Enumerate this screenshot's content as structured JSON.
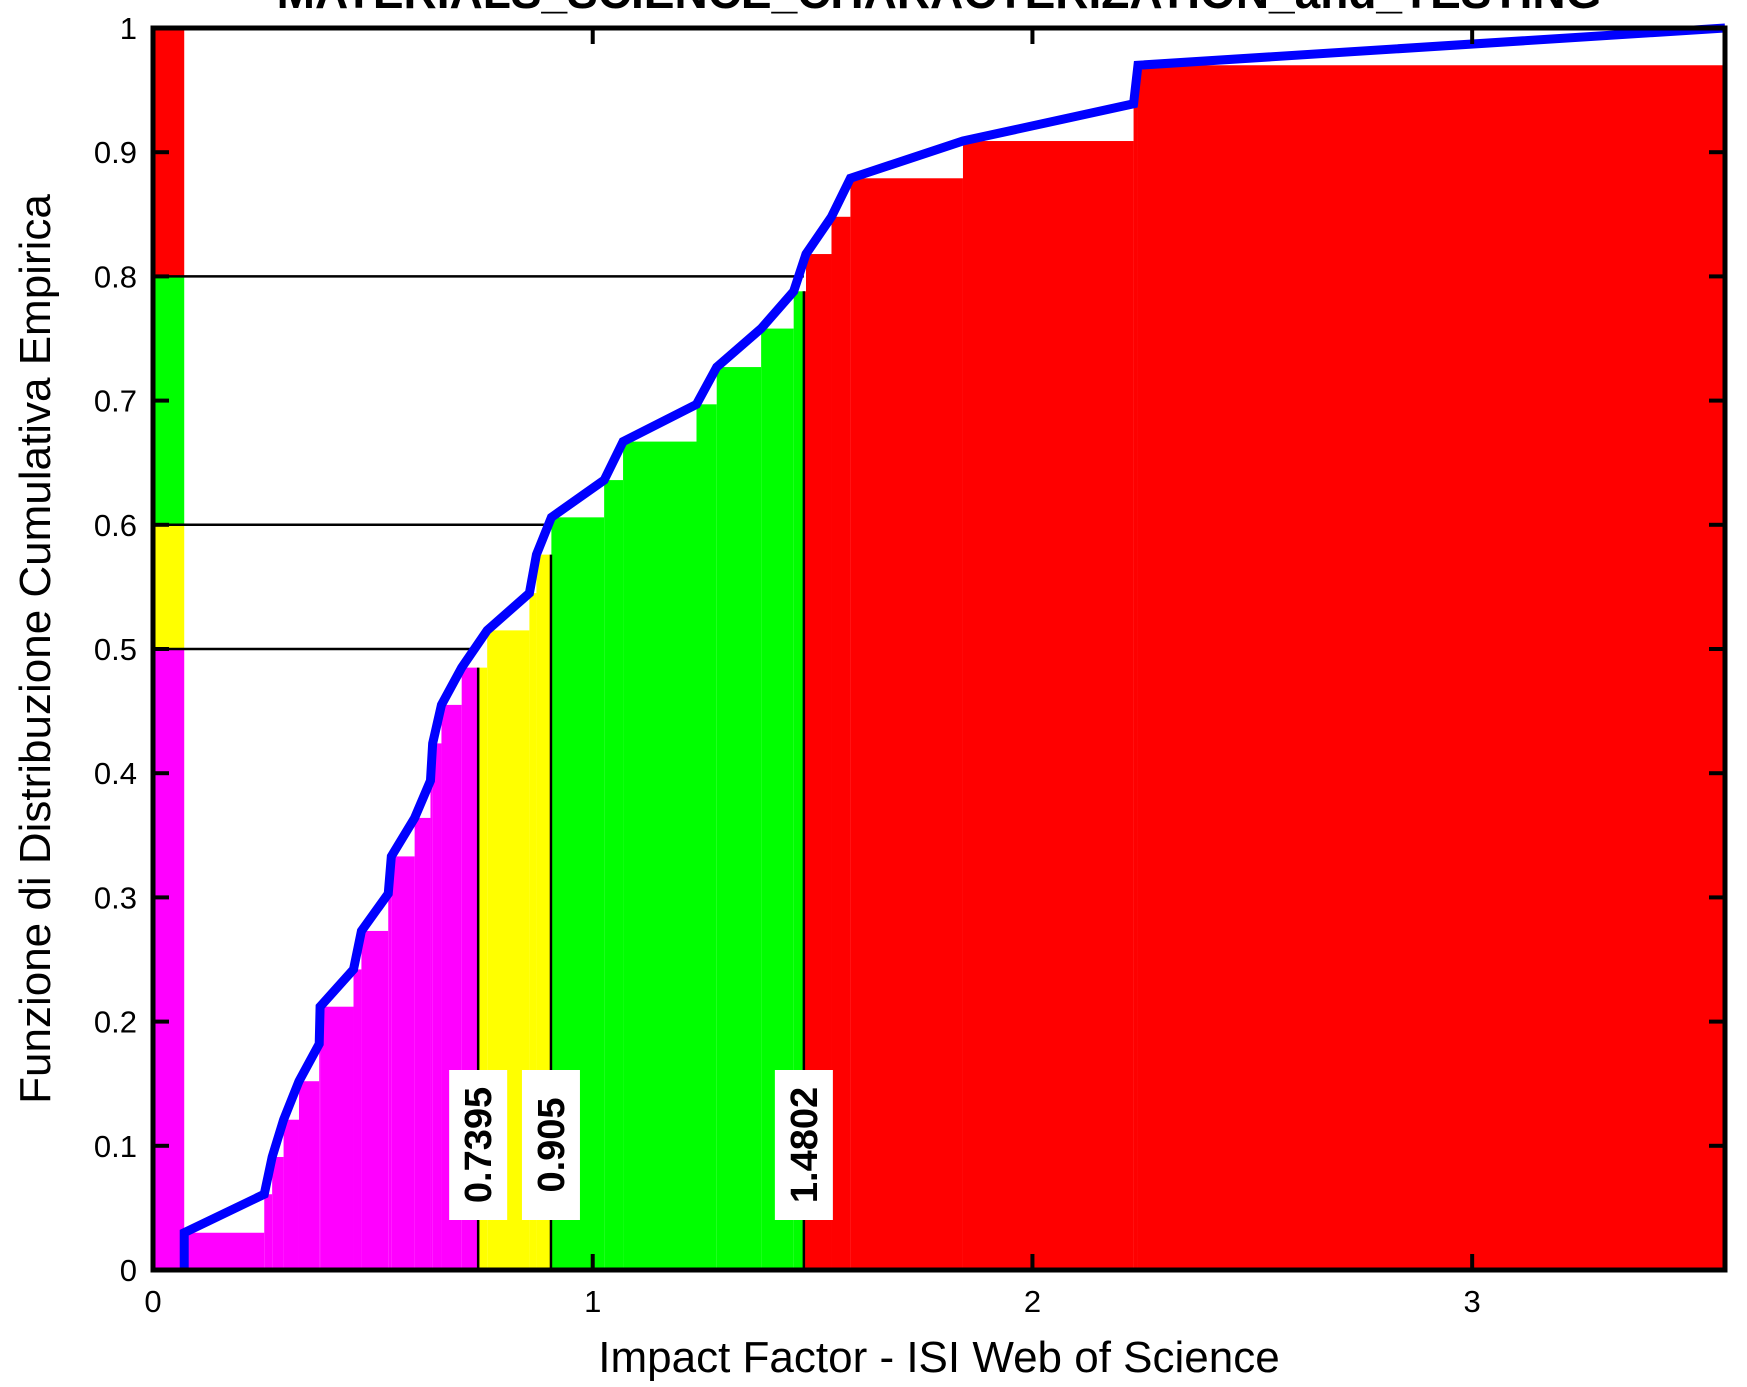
{
  "chart_data": {
    "type": "line",
    "title": "MATERIALS_SCIENCE_CHARACTERIZATION_and_TESTING",
    "xlabel": "Impact Factor - ISI Web of Science",
    "ylabel": "Funzione di Distribuzione Cumulativa Empirica",
    "x": [
      0.071,
      0.071,
      0.253,
      0.271,
      0.297,
      0.332,
      0.378,
      0.38,
      0.456,
      0.474,
      0.535,
      0.542,
      0.595,
      0.631,
      0.636,
      0.656,
      0.702,
      0.76,
      0.856,
      0.872,
      0.906,
      1.026,
      1.069,
      1.236,
      1.282,
      1.383,
      1.457,
      1.485,
      1.543,
      1.586,
      1.842,
      2.23,
      2.24,
      3.575
    ],
    "values": [
      0,
      0.03,
      0.061,
      0.091,
      0.121,
      0.152,
      0.182,
      0.212,
      0.242,
      0.273,
      0.303,
      0.333,
      0.364,
      0.394,
      0.424,
      0.455,
      0.485,
      0.515,
      0.545,
      0.576,
      0.606,
      0.636,
      0.667,
      0.697,
      0.727,
      0.758,
      0.788,
      0.818,
      0.848,
      0.879,
      0.909,
      0.939,
      0.97,
      1
    ],
    "color": "#0000ff",
    "quantiles": {
      "levels": [
        0.5,
        0.6,
        0.8
      ],
      "x": [
        0.7395,
        0.905,
        1.4802
      ]
    },
    "band_colors": [
      "#ff00ff",
      "#ffff00",
      "#00ff00",
      "#ff0000"
    ],
    "xlim": [
      0,
      3.575
    ],
    "ylim": [
      0,
      1
    ],
    "xticks": [
      0,
      1,
      2,
      3
    ],
    "yticks": [
      0,
      0.1,
      0.2,
      0.3,
      0.4,
      0.5,
      0.6,
      0.7,
      0.8,
      0.9,
      1
    ],
    "grid": false
  }
}
